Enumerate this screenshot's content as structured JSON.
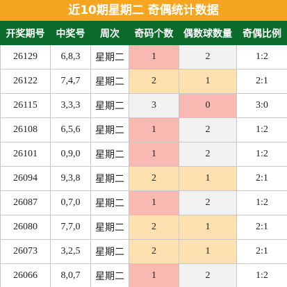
{
  "title": "近10期星期二 奇偶统计数据",
  "table": {
    "header": [
      "开奖期号",
      "中奖号",
      "周次",
      "奇码个数",
      "偶数球数量",
      "奇偶比例"
    ],
    "rows": [
      [
        "26129",
        "6,8,3",
        "星期二",
        "1",
        "2",
        "1:2"
      ],
      [
        "26122",
        "7,4,7",
        "星期二",
        "2",
        "1",
        "2:1"
      ],
      [
        "26115",
        "3,3,3",
        "星期二",
        "3",
        "0",
        "3:0"
      ],
      [
        "26108",
        "6,5,6",
        "星期二",
        "1",
        "2",
        "1:2"
      ],
      [
        "26101",
        "0,9,0",
        "星期二",
        "1",
        "2",
        "1:2"
      ],
      [
        "26094",
        "9,3,8",
        "星期二",
        "2",
        "1",
        "2:1"
      ],
      [
        "26087",
        "0,7,0",
        "星期二",
        "1",
        "2",
        "1:2"
      ],
      [
        "26080",
        "7,7,0",
        "星期二",
        "2",
        "1",
        "2:1"
      ],
      [
        "26073",
        "3,2,5",
        "星期二",
        "2",
        "1",
        "2:1"
      ],
      [
        "26066",
        "8,0,7",
        "星期二",
        "1",
        "2",
        "1:2"
      ]
    ],
    "cell_colors": [
      [
        "#f8b9b2",
        "#f2f2f2"
      ],
      [
        "#fde0b0",
        "#fde0b0"
      ],
      [
        "#f2f2f2",
        "#f8b9b2"
      ],
      [
        "#f8b9b2",
        "#f2f2f2"
      ],
      [
        "#f8b9b2",
        "#f2f2f2"
      ],
      [
        "#fde0b0",
        "#fde0b0"
      ],
      [
        "#f8b9b2",
        "#f2f2f2"
      ],
      [
        "#fde0b0",
        "#fde0b0"
      ],
      [
        "#fde0b0",
        "#fde0b0"
      ],
      [
        "#f8b9b2",
        "#f2f2f2"
      ]
    ]
  }
}
